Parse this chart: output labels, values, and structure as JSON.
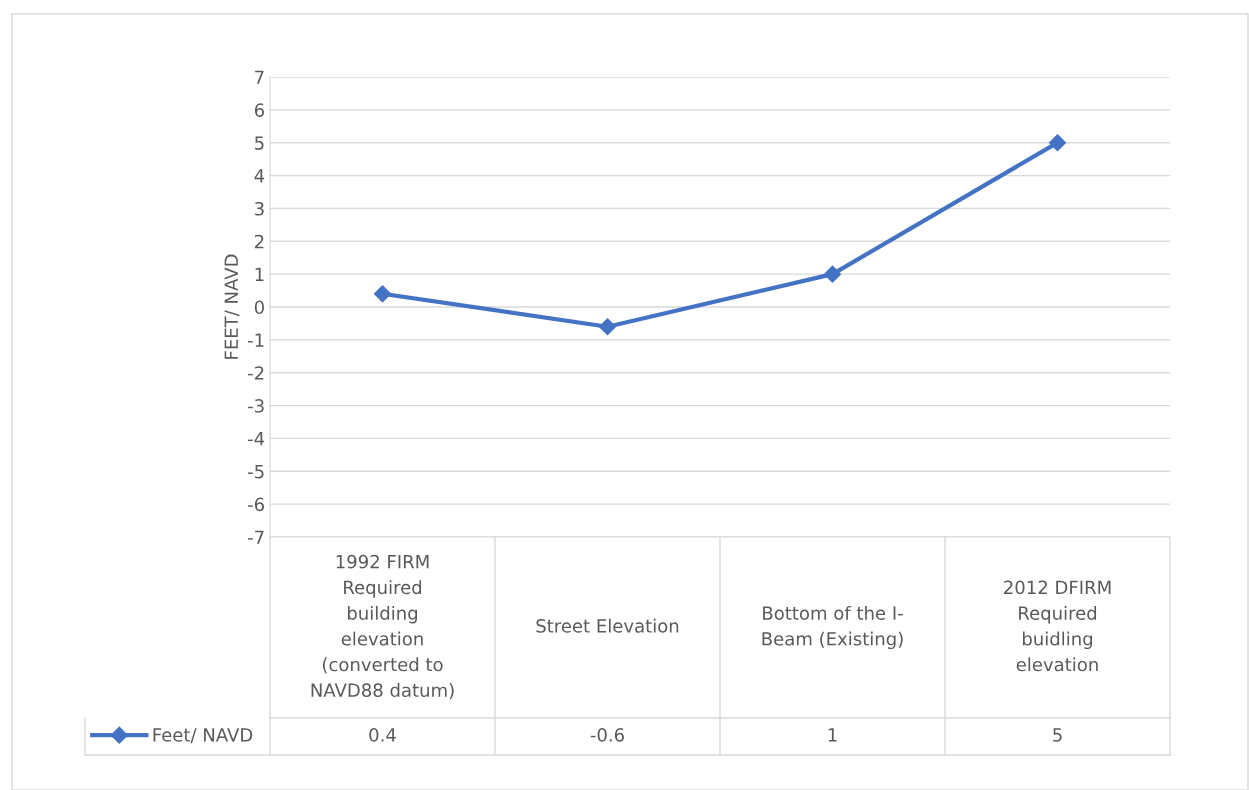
{
  "chart_data": {
    "type": "line",
    "ylabel": "FEET/ NAVD",
    "categories": [
      "1992 FIRM\nRequired\nbuilding\nelevation\n(converted to\nNAVD88 datum)",
      "Street Elevation",
      "Bottom of the I-\nBeam (Existing)",
      "2012 DFIRM\nRequired\nbuidling\nelevation"
    ],
    "series": [
      {
        "name": "Feet/ NAVD",
        "color": "#4472c4",
        "values": [
          0.4,
          -0.6,
          1,
          5
        ]
      }
    ],
    "ylim": [
      -7,
      7
    ],
    "yticks": [
      -7,
      -6,
      -5,
      -4,
      -3,
      -2,
      -1,
      0,
      1,
      2,
      3,
      4,
      5,
      6,
      7
    ],
    "grid": "y",
    "marker": "diamond",
    "line_style": "solid",
    "data_labels": true,
    "legend": "bottom left"
  }
}
